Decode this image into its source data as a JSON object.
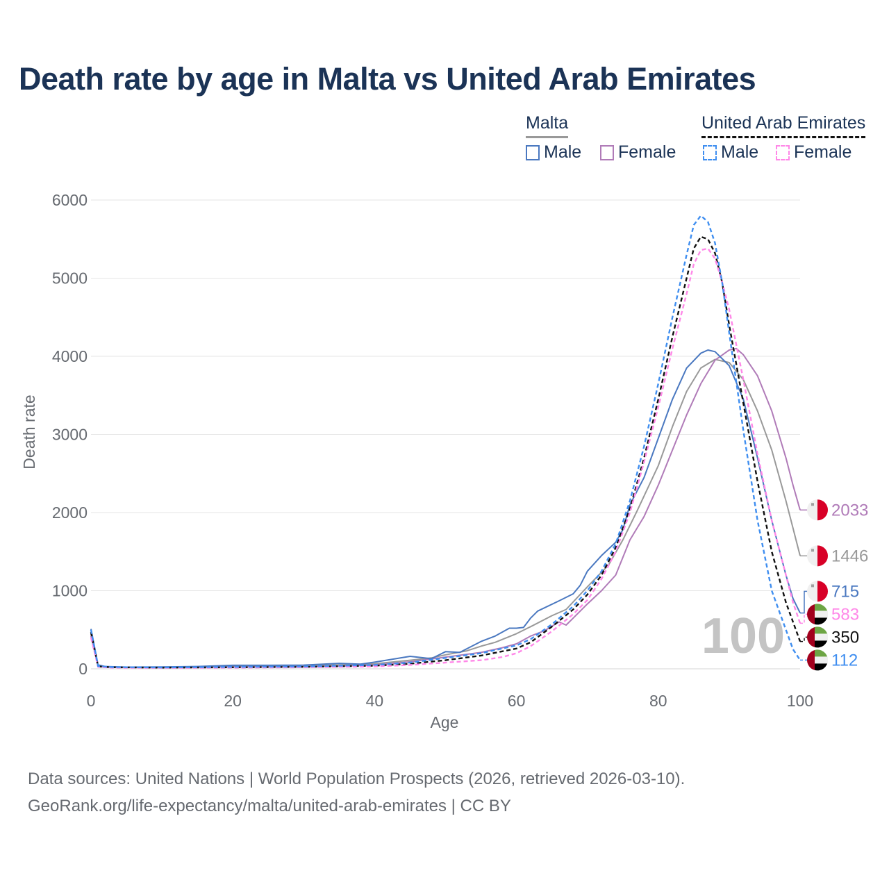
{
  "title": "Death rate by age in Malta vs United Arab Emirates",
  "legend": {
    "groups": [
      {
        "country": "Malta",
        "male_label": "Male",
        "female_label": "Female"
      },
      {
        "country": "United Arab Emirates",
        "male_label": "Male",
        "female_label": "Female"
      }
    ]
  },
  "colors": {
    "malta_male": "#4a78c0",
    "malta_female": "#b07bb8",
    "malta_total": "#999999",
    "uae_male": "#3f8ef0",
    "uae_female": "#ff88e8",
    "uae_total": "#111111",
    "title": "#1b3356"
  },
  "big_label": "100",
  "chart_data": {
    "type": "line",
    "xlabel": "Age",
    "ylabel": "Death rate",
    "xlim": [
      0,
      100
    ],
    "ylim": [
      0,
      6000
    ],
    "x_ticks": [
      0,
      20,
      40,
      60,
      80,
      100
    ],
    "y_ticks": [
      0,
      1000,
      2000,
      3000,
      4000,
      5000,
      6000
    ],
    "series": [
      {
        "key": "malta_total",
        "name": "Malta total",
        "dashed": false,
        "end_label": "1446",
        "flag": "malta",
        "points": [
          [
            0,
            450
          ],
          [
            1,
            40
          ],
          [
            2,
            25
          ],
          [
            5,
            20
          ],
          [
            10,
            22
          ],
          [
            15,
            28
          ],
          [
            20,
            35
          ],
          [
            25,
            40
          ],
          [
            30,
            42
          ],
          [
            35,
            50
          ],
          [
            40,
            65
          ],
          [
            45,
            110
          ],
          [
            48,
            140
          ],
          [
            50,
            180
          ],
          [
            53,
            230
          ],
          [
            55,
            290
          ],
          [
            57,
            340
          ],
          [
            60,
            450
          ],
          [
            62,
            540
          ],
          [
            65,
            680
          ],
          [
            67,
            760
          ],
          [
            70,
            1050
          ],
          [
            73,
            1330
          ],
          [
            75,
            1650
          ],
          [
            77,
            2020
          ],
          [
            80,
            2600
          ],
          [
            82,
            3100
          ],
          [
            84,
            3550
          ],
          [
            86,
            3850
          ],
          [
            88,
            3960
          ],
          [
            90,
            3920
          ],
          [
            92,
            3700
          ],
          [
            94,
            3300
          ],
          [
            96,
            2800
          ],
          [
            98,
            2150
          ],
          [
            99,
            1800
          ],
          [
            100,
            1446
          ]
        ]
      },
      {
        "key": "malta_female",
        "name": "Malta female",
        "dashed": false,
        "end_label": "2033",
        "flag": "malta",
        "points": [
          [
            0,
            420
          ],
          [
            1,
            35
          ],
          [
            2,
            20
          ],
          [
            5,
            18
          ],
          [
            10,
            18
          ],
          [
            15,
            20
          ],
          [
            20,
            25
          ],
          [
            25,
            28
          ],
          [
            30,
            30
          ],
          [
            35,
            35
          ],
          [
            40,
            50
          ],
          [
            45,
            90
          ],
          [
            50,
            150
          ],
          [
            55,
            210
          ],
          [
            58,
            270
          ],
          [
            60,
            320
          ],
          [
            62,
            420
          ],
          [
            64,
            490
          ],
          [
            66,
            600
          ],
          [
            67,
            560
          ],
          [
            68,
            650
          ],
          [
            70,
            830
          ],
          [
            72,
            1000
          ],
          [
            74,
            1200
          ],
          [
            76,
            1650
          ],
          [
            78,
            1950
          ],
          [
            80,
            2350
          ],
          [
            82,
            2800
          ],
          [
            84,
            3250
          ],
          [
            86,
            3650
          ],
          [
            88,
            3950
          ],
          [
            90,
            4080
          ],
          [
            91,
            4100
          ],
          [
            92,
            4020
          ],
          [
            94,
            3750
          ],
          [
            96,
            3300
          ],
          [
            98,
            2700
          ],
          [
            99,
            2350
          ],
          [
            100,
            2033
          ]
        ]
      },
      {
        "key": "malta_male",
        "name": "Malta male",
        "dashed": false,
        "end_label": "715",
        "flag": "malta",
        "points": [
          [
            0,
            510
          ],
          [
            1,
            50
          ],
          [
            2,
            30
          ],
          [
            5,
            22
          ],
          [
            10,
            25
          ],
          [
            15,
            30
          ],
          [
            20,
            45
          ],
          [
            25,
            45
          ],
          [
            30,
            48
          ],
          [
            35,
            70
          ],
          [
            38,
            60
          ],
          [
            40,
            85
          ],
          [
            45,
            160
          ],
          [
            48,
            130
          ],
          [
            50,
            220
          ],
          [
            52,
            210
          ],
          [
            55,
            350
          ],
          [
            57,
            420
          ],
          [
            59,
            520
          ],
          [
            60,
            520
          ],
          [
            61,
            530
          ],
          [
            62,
            650
          ],
          [
            63,
            740
          ],
          [
            66,
            870
          ],
          [
            68,
            960
          ],
          [
            69,
            1070
          ],
          [
            70,
            1250
          ],
          [
            72,
            1450
          ],
          [
            74,
            1620
          ],
          [
            75,
            1780
          ],
          [
            76,
            2100
          ],
          [
            78,
            2450
          ],
          [
            80,
            2950
          ],
          [
            82,
            3450
          ],
          [
            84,
            3850
          ],
          [
            86,
            4040
          ],
          [
            87,
            4080
          ],
          [
            88,
            4060
          ],
          [
            90,
            3880
          ],
          [
            92,
            3450
          ],
          [
            94,
            2700
          ],
          [
            96,
            1900
          ],
          [
            98,
            1200
          ],
          [
            99,
            900
          ],
          [
            100,
            715
          ]
        ]
      },
      {
        "key": "uae_total",
        "name": "UAE total",
        "dashed": true,
        "end_label": "350",
        "flag": "uae",
        "points": [
          [
            0,
            470
          ],
          [
            1,
            30
          ],
          [
            3,
            20
          ],
          [
            10,
            15
          ],
          [
            20,
            20
          ],
          [
            30,
            25
          ],
          [
            40,
            40
          ],
          [
            45,
            65
          ],
          [
            50,
            110
          ],
          [
            55,
            170
          ],
          [
            60,
            260
          ],
          [
            62,
            340
          ],
          [
            65,
            540
          ],
          [
            68,
            760
          ],
          [
            70,
            950
          ],
          [
            72,
            1200
          ],
          [
            74,
            1550
          ],
          [
            76,
            2050
          ],
          [
            78,
            2700
          ],
          [
            80,
            3450
          ],
          [
            82,
            4250
          ],
          [
            84,
            5000
          ],
          [
            85,
            5380
          ],
          [
            86,
            5530
          ],
          [
            87,
            5500
          ],
          [
            88,
            5320
          ],
          [
            89,
            4950
          ],
          [
            90,
            4400
          ],
          [
            92,
            3400
          ],
          [
            94,
            2400
          ],
          [
            96,
            1500
          ],
          [
            98,
            850
          ],
          [
            99,
            600
          ],
          [
            100,
            350
          ]
        ]
      },
      {
        "key": "uae_female",
        "name": "UAE female",
        "dashed": true,
        "end_label": "583",
        "flag": "uae",
        "points": [
          [
            0,
            400
          ],
          [
            1,
            25
          ],
          [
            3,
            15
          ],
          [
            10,
            12
          ],
          [
            20,
            15
          ],
          [
            30,
            20
          ],
          [
            40,
            30
          ],
          [
            45,
            50
          ],
          [
            50,
            80
          ],
          [
            55,
            110
          ],
          [
            58,
            150
          ],
          [
            60,
            200
          ],
          [
            62,
            290
          ],
          [
            65,
            480
          ],
          [
            68,
            700
          ],
          [
            70,
            880
          ],
          [
            72,
            1150
          ],
          [
            74,
            1500
          ],
          [
            76,
            2000
          ],
          [
            78,
            2650
          ],
          [
            80,
            3350
          ],
          [
            82,
            4100
          ],
          [
            84,
            4800
          ],
          [
            85,
            5180
          ],
          [
            86,
            5360
          ],
          [
            87,
            5380
          ],
          [
            88,
            5250
          ],
          [
            89,
            4950
          ],
          [
            90,
            4600
          ],
          [
            92,
            3700
          ],
          [
            94,
            2750
          ],
          [
            96,
            1900
          ],
          [
            98,
            1200
          ],
          [
            99,
            850
          ],
          [
            100,
            583
          ]
        ]
      },
      {
        "key": "uae_male",
        "name": "UAE male",
        "dashed": true,
        "end_label": "112",
        "flag": "uae",
        "points": [
          [
            0,
            500
          ],
          [
            1,
            35
          ],
          [
            3,
            22
          ],
          [
            10,
            18
          ],
          [
            20,
            25
          ],
          [
            30,
            30
          ],
          [
            40,
            50
          ],
          [
            45,
            80
          ],
          [
            50,
            140
          ],
          [
            55,
            200
          ],
          [
            60,
            300
          ],
          [
            62,
            380
          ],
          [
            65,
            570
          ],
          [
            68,
            800
          ],
          [
            70,
            1000
          ],
          [
            72,
            1250
          ],
          [
            74,
            1600
          ],
          [
            76,
            2150
          ],
          [
            78,
            2850
          ],
          [
            80,
            3650
          ],
          [
            82,
            4500
          ],
          [
            84,
            5300
          ],
          [
            85,
            5680
          ],
          [
            86,
            5800
          ],
          [
            87,
            5720
          ],
          [
            88,
            5450
          ],
          [
            89,
            4950
          ],
          [
            90,
            4300
          ],
          [
            92,
            3050
          ],
          [
            94,
            1900
          ],
          [
            96,
            1000
          ],
          [
            98,
            500
          ],
          [
            99,
            250
          ],
          [
            100,
            112
          ]
        ]
      }
    ]
  },
  "footer": {
    "line1": "Data sources: United Nations | World Population Prospects (2026, retrieved 2026-03-10).",
    "line2": "GeoRank.org/life-expectancy/malta/united-arab-emirates | CC BY"
  }
}
